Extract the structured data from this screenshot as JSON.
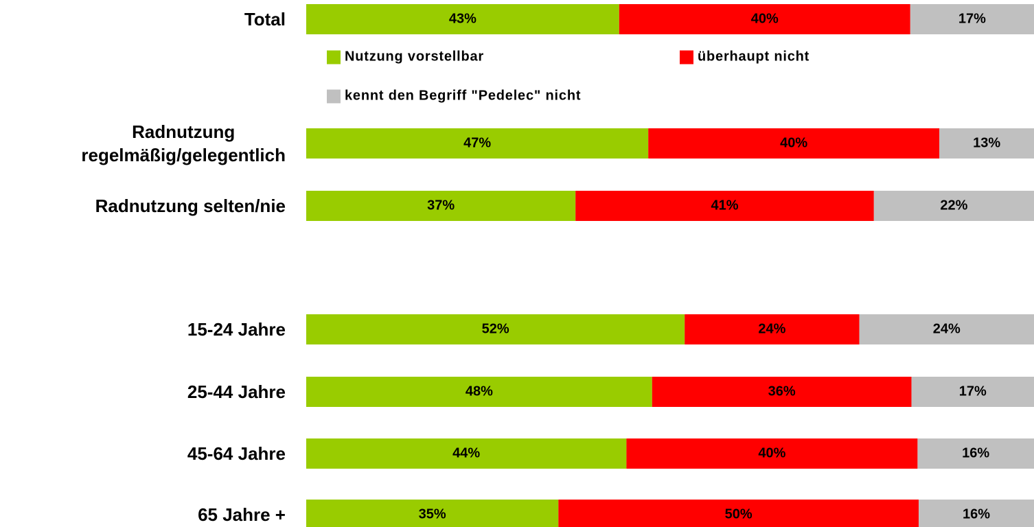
{
  "chart_data": {
    "type": "stacked-bar-100",
    "categories": [
      "Total",
      "Radnutzung\nregelmäßig/gelegentlich",
      "Radnutzung selten/nie",
      "15-24 Jahre",
      "25-44 Jahre",
      "45-64 Jahre",
      "65 Jahre +"
    ],
    "series": [
      {
        "name": "Nutzung vorstellbar",
        "color": "#99cc00",
        "values": [
          43,
          47,
          37,
          52,
          48,
          44,
          35
        ],
        "value_labels": [
          "43%",
          "47%",
          "37%",
          "52%",
          "48%",
          "44%",
          "35%"
        ]
      },
      {
        "name": "überhaupt nicht",
        "color": "#ff0000",
        "values": [
          40,
          40,
          41,
          24,
          36,
          40,
          50
        ],
        "value_labels": [
          "40%",
          "40%",
          "41%",
          "24%",
          "36%",
          "40%",
          "50%"
        ]
      },
      {
        "name": "kennt den Begriff \"Pedelec\" nicht",
        "color": "#c0c0c0",
        "values": [
          17,
          13,
          22,
          24,
          17,
          16,
          16
        ],
        "value_labels": [
          "17%",
          "13%",
          "22%",
          "24%",
          "17%",
          "16%",
          "16%"
        ]
      }
    ]
  }
}
